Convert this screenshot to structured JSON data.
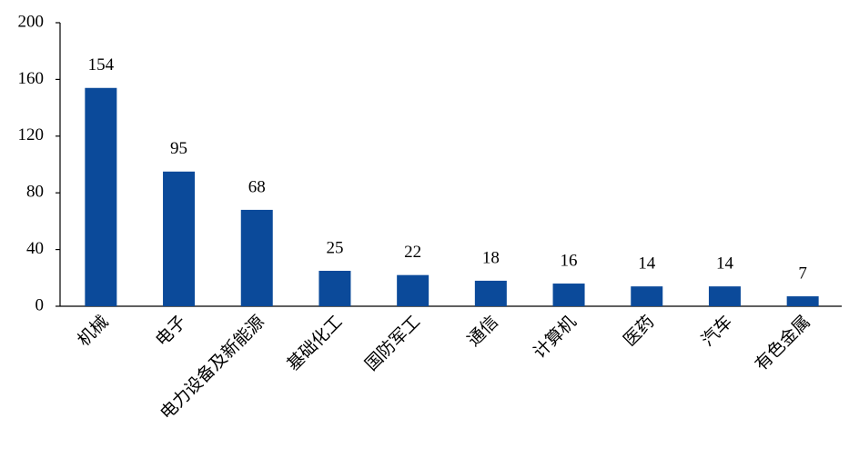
{
  "chart_data": {
    "type": "bar",
    "categories": [
      "机械",
      "电子",
      "电力设备及新能源",
      "基础化工",
      "国防军工",
      "通信",
      "计算机",
      "医药",
      "汽车",
      "有色金属"
    ],
    "values": [
      154,
      95,
      68,
      25,
      22,
      18,
      16,
      14,
      14,
      7
    ],
    "color": "#0b4a9a",
    "ylim": [
      0,
      200
    ],
    "yticks": [
      0,
      40,
      80,
      120,
      160,
      200
    ],
    "grid": false
  }
}
